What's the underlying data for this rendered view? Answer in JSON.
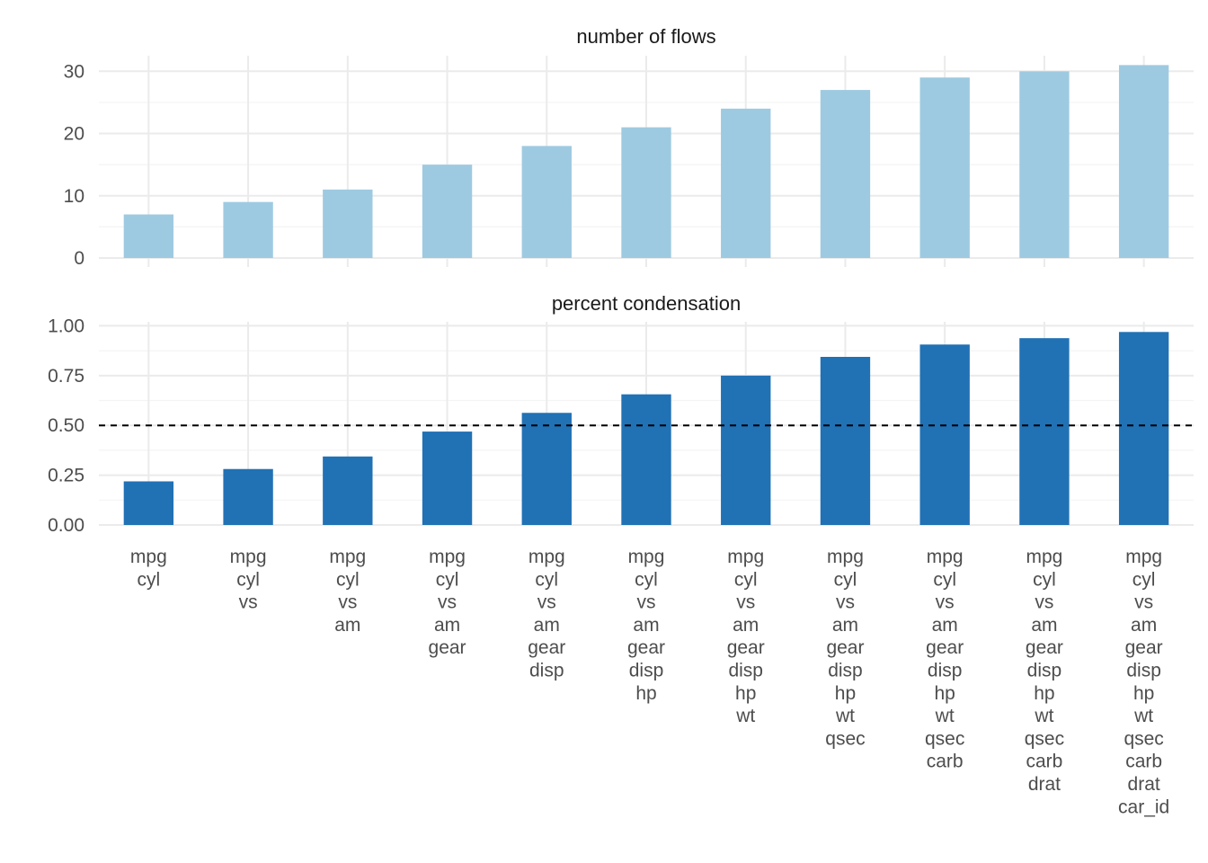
{
  "colors": {
    "flows_bar": "#9ecae1",
    "condensation_bar": "#2171b5",
    "grid_major": "#ebebeb",
    "grid_minor": "#f4f4f4",
    "reference_line": "#000000"
  },
  "chart_data": [
    {
      "type": "bar",
      "title": "number of flows",
      "categories": [
        "mpg cyl",
        "mpg cyl vs",
        "mpg cyl vs am",
        "mpg cyl vs am gear",
        "mpg cyl vs am gear disp",
        "mpg cyl vs am gear disp hp",
        "mpg cyl vs am gear disp hp wt",
        "mpg cyl vs am gear disp hp wt qsec",
        "mpg cyl vs am gear disp hp wt qsec carb",
        "mpg cyl vs am gear disp hp wt qsec carb drat",
        "mpg cyl vs am gear disp hp wt qsec carb drat car_id"
      ],
      "values": [
        7,
        9,
        11,
        15,
        18,
        21,
        24,
        27,
        29,
        30,
        31
      ],
      "yticks": [
        "0",
        "10",
        "20",
        "30"
      ],
      "ylim": [
        0,
        32.5
      ],
      "xlabel": "",
      "ylabel": "",
      "grid": true
    },
    {
      "type": "bar",
      "title": "percent condensation",
      "categories": [
        "mpg cyl",
        "mpg cyl vs",
        "mpg cyl vs am",
        "mpg cyl vs am gear",
        "mpg cyl vs am gear disp",
        "mpg cyl vs am gear disp hp",
        "mpg cyl vs am gear disp hp wt",
        "mpg cyl vs am gear disp hp wt qsec",
        "mpg cyl vs am gear disp hp wt qsec carb",
        "mpg cyl vs am gear disp hp wt qsec carb drat",
        "mpg cyl vs am gear disp hp wt qsec carb drat car_id"
      ],
      "values": [
        0.219,
        0.281,
        0.344,
        0.469,
        0.563,
        0.656,
        0.75,
        0.844,
        0.906,
        0.938,
        0.969
      ],
      "yticks": [
        "0.00",
        "0.25",
        "0.50",
        "0.75",
        "1.00"
      ],
      "ylim": [
        0,
        1.02
      ],
      "reference_line": 0.5,
      "xlabel": "",
      "ylabel": "",
      "grid": true
    }
  ]
}
